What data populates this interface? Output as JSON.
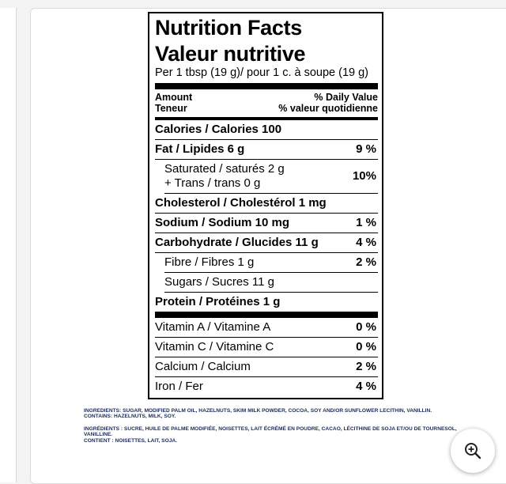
{
  "label": {
    "title_en": "Nutrition Facts",
    "title_fr": "Valeur nutritive",
    "serving": "Per 1 tbsp (19 g)/ pour 1 c. à soupe (19 g)",
    "amount_en": "Amount",
    "amount_fr": "Teneur",
    "dv_en": "% Daily Value",
    "dv_fr": "% valeur quotidienne",
    "calories": "Calories / Calories 100",
    "fat": {
      "label": "Fat / Lipides 6 g",
      "pct": "9 %"
    },
    "saturated": {
      "line1": "Saturated / saturés 2 g",
      "line2": "+ Trans / trans 0 g",
      "pct": "10%"
    },
    "cholesterol": "Cholesterol / Cholestérol 1 mg",
    "sodium": {
      "label": "Sodium / Sodium 10 mg",
      "pct": "1 %"
    },
    "carbohydrate": {
      "label": "Carbohydrate / Glucides 11 g",
      "pct": "4 %"
    },
    "fibre": {
      "label": "Fibre / Fibres 1 g",
      "pct": "2 %"
    },
    "sugars": "Sugars / Sucres 11 g",
    "protein": "Protein / Protéines 1 g",
    "vitamin_a": {
      "label": "Vitamin A / Vitamine A",
      "pct": "0 %"
    },
    "vitamin_c": {
      "label": "Vitamin C / Vitamine C",
      "pct": "0 %"
    },
    "calcium": {
      "label": "Calcium / Calcium",
      "pct": "2 %"
    },
    "iron": {
      "label": "Iron / Fer",
      "pct": "4 %"
    }
  },
  "ingredients": {
    "en_list": "INGREDIENTS: SUGAR, MODIFIED PALM OIL, HAZELNUTS, SKIM MILK POWDER, COCOA, SOY AND/OR SUNFLOWER LECITHIN, VANILLIN.",
    "en_contains": "CONTAINS: HAZELNUTS, MILK, SOY.",
    "fr_list": "INGRÉDIENTS : SUCRE, HUILE DE PALME MODIFIÉE, NOISETTES, LAIT ÉCRÉMÉ EN POUDRE, CACAO, LÉCITHINE DE SOJA ET/OU DE TOURNESOL, VANILLINE.",
    "fr_contains": "CONTIENT : NOISETTES, LAIT, SOJA."
  },
  "zoom": {
    "icon": "zoom-in-icon"
  }
}
